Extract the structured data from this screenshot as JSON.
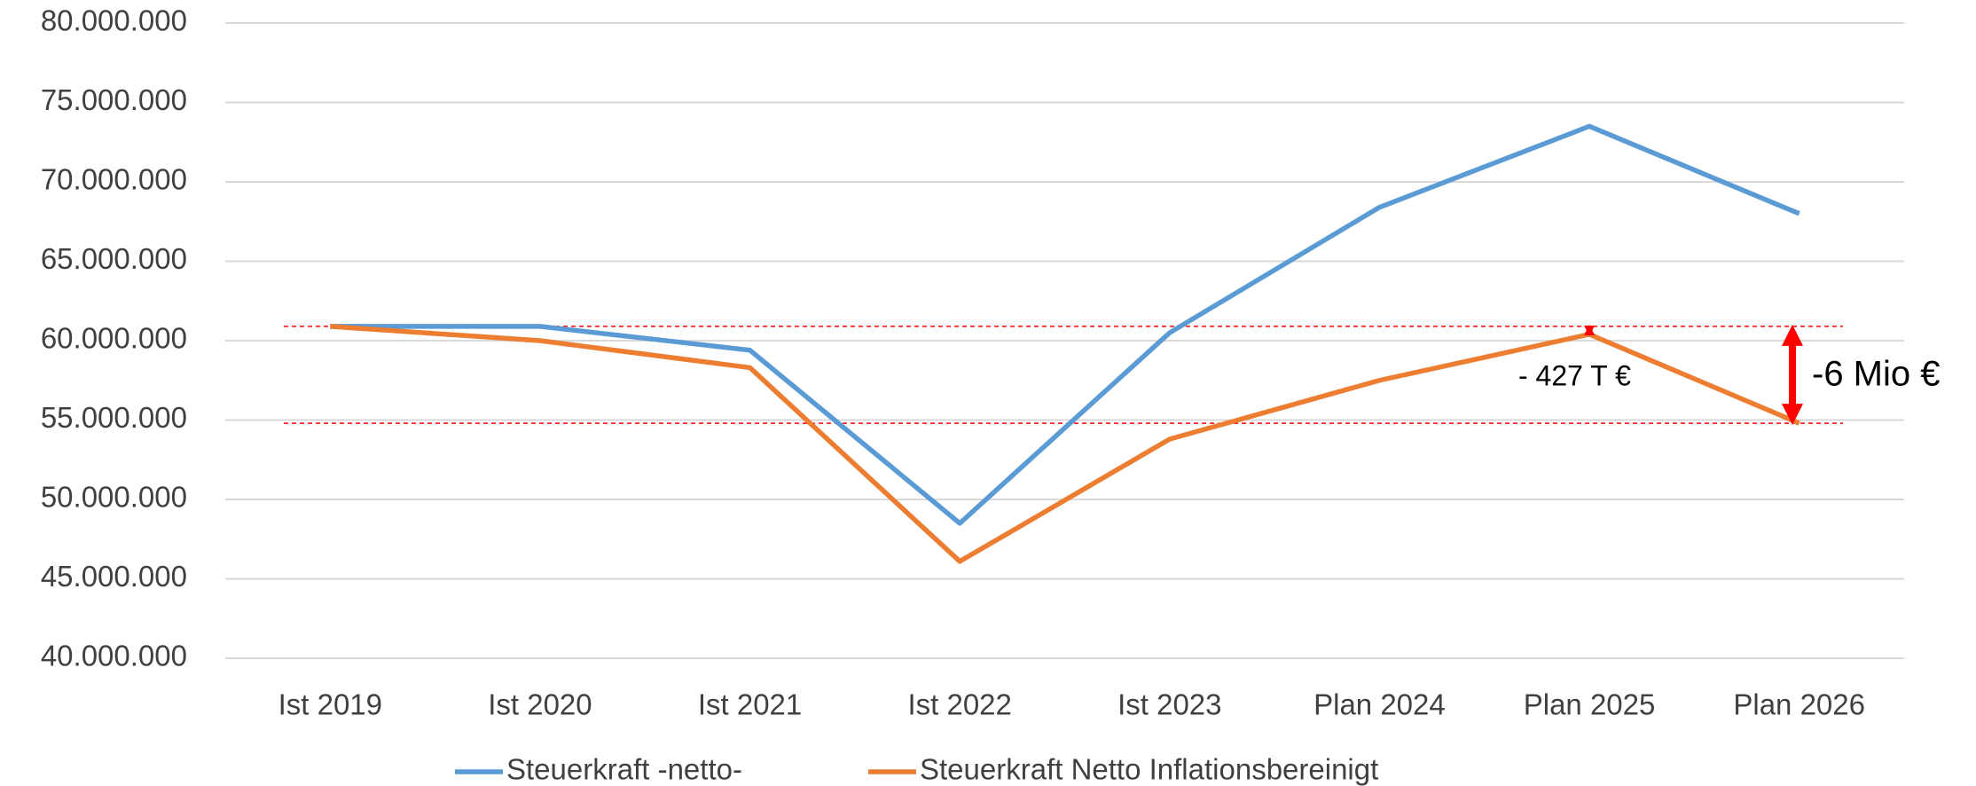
{
  "chart_data": {
    "type": "line",
    "categories": [
      "Ist 2019",
      "Ist 2020",
      "Ist 2021",
      "Ist 2022",
      "Ist 2023",
      "Plan 2024",
      "Plan 2025",
      "Plan 2026"
    ],
    "series": [
      {
        "name": "Steuerkraft -netto-",
        "color": "#5b9bd5",
        "values": [
          60900000,
          60900000,
          59400000,
          48500000,
          60500000,
          68400000,
          73500000,
          68000000
        ]
      },
      {
        "name": "Steuerkraft Netto Inflationsbereinigt",
        "color": "#ed7d31",
        "values": [
          60900000,
          60000000,
          58300000,
          46100000,
          53800000,
          57500000,
          60400000,
          54800000
        ]
      }
    ],
    "ylim": [
      40000000,
      80000000
    ],
    "yticks": [
      {
        "value": 40000000,
        "label": "40.000.000"
      },
      {
        "value": 45000000,
        "label": "45.000.000"
      },
      {
        "value": 50000000,
        "label": "50.000.000"
      },
      {
        "value": 55000000,
        "label": "55.000.000"
      },
      {
        "value": 60000000,
        "label": "60.000.000"
      },
      {
        "value": 65000000,
        "label": "65.000.000"
      },
      {
        "value": 70000000,
        "label": "70.000.000"
      },
      {
        "value": 75000000,
        "label": "75.000.000"
      },
      {
        "value": 80000000,
        "label": "80.000.000"
      }
    ],
    "grid": true,
    "reference_lines": {
      "color": "#ff0000",
      "values": [
        60900000,
        54800000
      ]
    },
    "annotations": [
      "- 427 T €",
      "-6 Mio €"
    ],
    "legend": "bottom"
  }
}
